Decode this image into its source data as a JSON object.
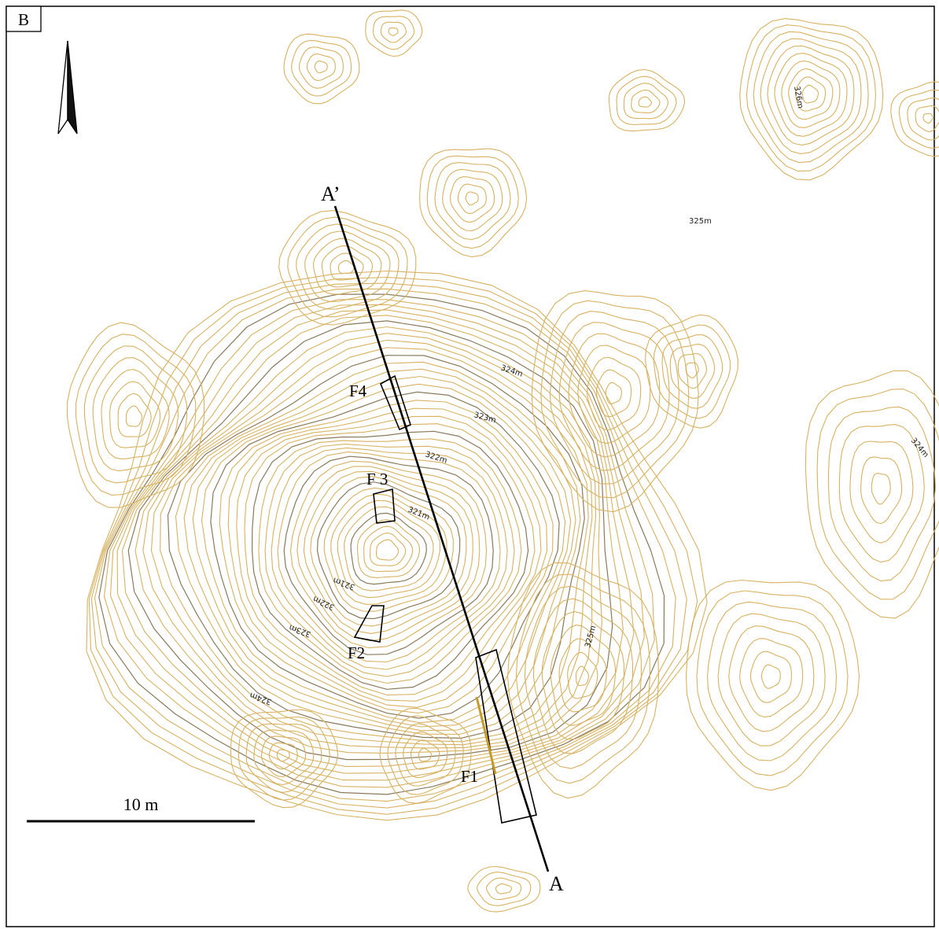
{
  "panel_label": "B",
  "section": {
    "start_label": "A",
    "end_label": "A’"
  },
  "features": [
    {
      "id": "f1",
      "label": "F1"
    },
    {
      "id": "f2",
      "label": "F2"
    },
    {
      "id": "f3",
      "label": "F 3"
    },
    {
      "id": "f4",
      "label": "F4"
    }
  ],
  "elevation_labels": [
    "321m",
    "321m",
    "322m",
    "322m",
    "323m",
    "323m",
    "324m",
    "324m",
    "324m",
    "325m",
    "325m",
    "326m"
  ],
  "scale_bar": {
    "label": "10 m"
  },
  "north_arrow": {
    "icon": "north-arrow-icon"
  },
  "colors": {
    "contour": "#d7b261",
    "contour_major": "#8a7a5c",
    "annotation": "#000000"
  }
}
